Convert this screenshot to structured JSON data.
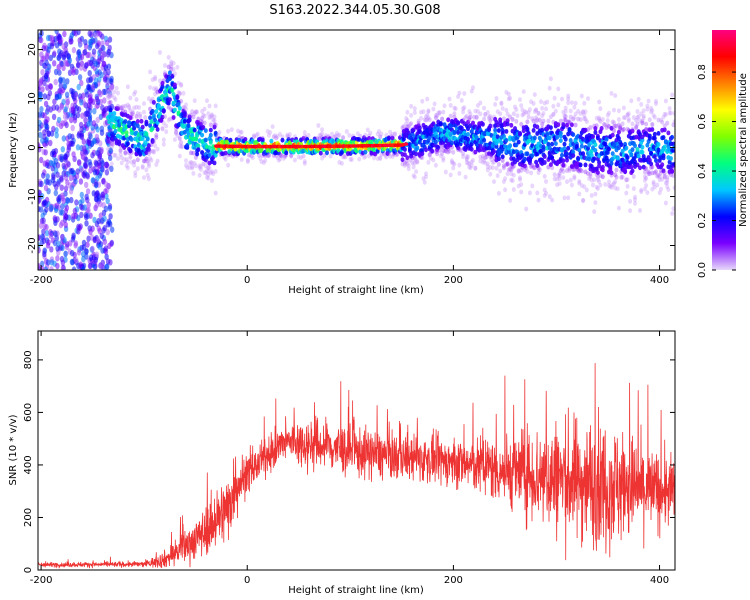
{
  "chart_data": [
    {
      "type": "heatmap",
      "title": "S163.2022.344.05.30.G08",
      "xlabel": "Height of straight line (km)",
      "ylabel": "Frequency (Hz)",
      "xlim": [
        -203,
        415
      ],
      "ylim": [
        -25,
        24
      ],
      "xticks": [
        -200,
        0,
        200,
        400
      ],
      "yticks": [
        -20,
        -10,
        0,
        10,
        20
      ],
      "colorbar": {
        "label": "Normalized spectral amplitude",
        "range": [
          0,
          0.97
        ],
        "ticks": [
          "0.0",
          "0.2",
          "0.4",
          "0.6",
          "0.8"
        ],
        "colors": [
          "#e7d8f9",
          "#7a00ff",
          "#0000ff",
          "#00c8ff",
          "#00ff80",
          "#80ff00",
          "#ffff00",
          "#ff8000",
          "#ff0000",
          "#ff0080"
        ]
      },
      "ridge": {
        "height_km": [
          -130,
          -115,
          -100,
          -85,
          -75,
          -70,
          -60,
          -50,
          -40,
          -30,
          0,
          50,
          100,
          150,
          170,
          190,
          210,
          230,
          250,
          270,
          290,
          310,
          330,
          350,
          370,
          390,
          410
        ],
        "frequency_hz": [
          5,
          3,
          1,
          8,
          13,
          9,
          3,
          2,
          1,
          0.3,
          0.2,
          0.2,
          0.3,
          0.5,
          1.5,
          3,
          2.5,
          2,
          1,
          0.5,
          0.5,
          0.8,
          -0.5,
          -0.5,
          -1,
          0,
          -0.5
        ]
      }
    },
    {
      "type": "line",
      "xlabel": "Height of straight line (km)",
      "ylabel": "SNR (10 * v/v)",
      "xlim": [
        -203,
        415
      ],
      "ylim": [
        0,
        910
      ],
      "xticks": [
        -200,
        0,
        200,
        400
      ],
      "yticks": [
        0,
        200,
        400,
        600,
        800
      ],
      "color": "#ee3333",
      "envelope": {
        "height_km": [
          -203,
          -100,
          -80,
          -60,
          -40,
          -20,
          -10,
          0,
          20,
          40,
          60,
          80,
          100,
          150,
          200,
          250,
          300,
          350,
          400,
          415
        ],
        "snr_mean": [
          20,
          22,
          40,
          90,
          150,
          230,
          330,
          360,
          440,
          490,
          480,
          470,
          450,
          430,
          410,
          380,
          350,
          330,
          300,
          300
        ],
        "snr_spread": [
          8,
          10,
          30,
          60,
          80,
          120,
          110,
          60,
          60,
          70,
          90,
          90,
          90,
          80,
          80,
          120,
          200,
          220,
          130,
          120
        ]
      }
    }
  ]
}
